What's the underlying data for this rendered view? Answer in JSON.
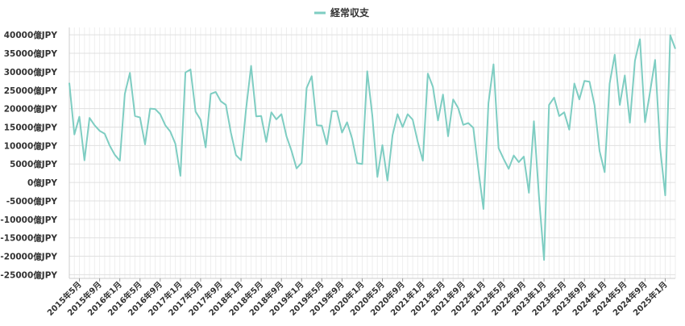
{
  "chart_data": {
    "type": "line",
    "title": "",
    "xlabel": "",
    "ylabel": "",
    "series": [
      {
        "name": "経常収支",
        "color": "#7ecdc2",
        "values": [
          27000,
          13000,
          17800,
          6000,
          17500,
          15500,
          14000,
          13200,
          10000,
          7500,
          5900,
          24000,
          29700,
          18000,
          17600,
          10300,
          20000,
          19900,
          18500,
          15500,
          13800,
          10500,
          1800,
          29800,
          30600,
          19200,
          17000,
          9500,
          24000,
          24500,
          22000,
          21000,
          13500,
          7400,
          6000,
          19800,
          31600,
          17900,
          18000,
          11000,
          19000,
          17100,
          18500,
          12500,
          8600,
          3800,
          5300,
          25600,
          28800,
          15500,
          15400,
          10300,
          19300,
          19300,
          13500,
          16300,
          11900,
          5200,
          5000,
          30100,
          18100,
          1500,
          10100,
          500,
          12800,
          18500,
          15000,
          18500,
          17000,
          11000,
          5900,
          29500,
          25900,
          16800,
          23800,
          12500,
          22500,
          20200,
          15600,
          16100,
          14800,
          3500,
          -7200,
          21500,
          32000,
          9300,
          6400,
          3700,
          7300,
          5500,
          7000,
          -2800,
          16600,
          -3800,
          -21000,
          21000,
          23000,
          18000,
          19000,
          14300,
          26800,
          22500,
          27500,
          27300,
          21000,
          8500,
          2800,
          26800,
          34600,
          21000,
          29000,
          16200,
          33000,
          38800,
          16300,
          24600,
          33200,
          9200,
          -3500,
          39900,
          36200
        ]
      }
    ],
    "x_start": "2015年3月",
    "x_end": "2025年3月",
    "x_tick_labels": [
      "2015年5月",
      "2015年9月",
      "2016年1月",
      "2016年5月",
      "2016年9月",
      "2017年1月",
      "2017年5月",
      "2017年9月",
      "2018年1月",
      "2018年5月",
      "2018年9月",
      "2019年1月",
      "2019年5月",
      "2019年9月",
      "2020年1月",
      "2020年5月",
      "2020年9月",
      "2021年1月",
      "2021年5月",
      "2021年9月",
      "2022年1月",
      "2022年5月",
      "2022年9月",
      "2023年1月",
      "2023年5月",
      "2023年9月",
      "2024年1月",
      "2024年5月",
      "2024年9月",
      "2025年1月"
    ],
    "y_ticks": [
      40000,
      35000,
      30000,
      25000,
      20000,
      15000,
      10000,
      5000,
      0,
      -5000,
      -10000,
      -15000,
      -20000,
      -25000
    ],
    "y_unit_suffix": "億JPY",
    "ylim": [
      -26000,
      42000
    ],
    "grid": true,
    "legend_position": "top-center"
  }
}
